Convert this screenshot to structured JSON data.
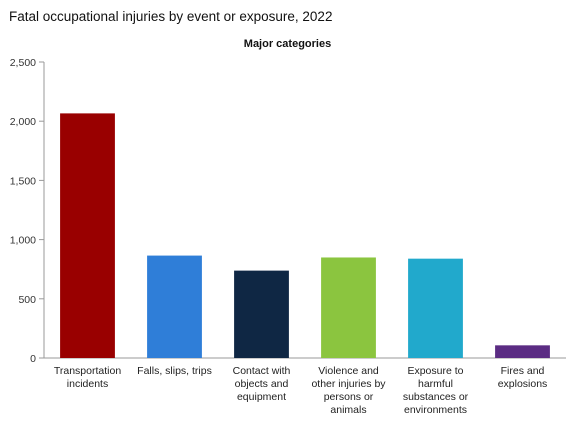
{
  "chart_data": {
    "type": "bar",
    "title": "Fatal occupational injuries by event or exposure, 2022",
    "subtitle": "Major categories",
    "categories": [
      [
        "Transportation",
        "incidents"
      ],
      [
        "Falls, slips, trips"
      ],
      [
        "Contact with",
        "objects and",
        "equipment"
      ],
      [
        "Violence and",
        "other injuries by",
        "persons or",
        "animals"
      ],
      [
        "Exposure to",
        "harmful",
        "substances or",
        "environments"
      ],
      [
        "Fires and",
        "explosions"
      ]
    ],
    "values": [
      2066,
      865,
      738,
      849,
      839,
      107
    ],
    "colors": [
      "#990000",
      "#2f7ed8",
      "#0f2744",
      "#8bc53f",
      "#21a9cc",
      "#5b2c83"
    ],
    "ylim": [
      0,
      2500
    ],
    "yticks": [
      0,
      500,
      1000,
      1500,
      2000,
      2500
    ],
    "ytick_labels": [
      "0",
      "500",
      "1,000",
      "1,500",
      "2,000",
      "2,500"
    ],
    "grid": false,
    "legend": "none"
  }
}
